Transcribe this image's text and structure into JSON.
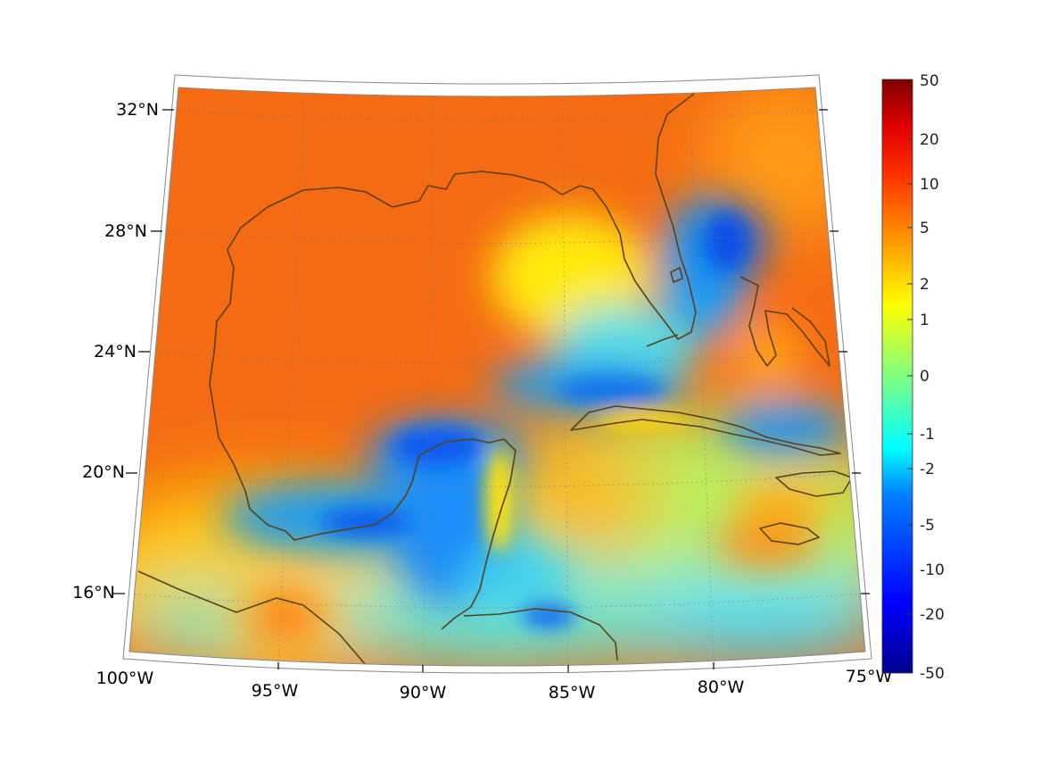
{
  "map": {
    "projection": "conic",
    "grid": true,
    "colormap": "jet",
    "region": "Gulf of Mexico and Caribbean",
    "lon_ticks": [
      "100°W",
      "95°W",
      "90°W",
      "85°W",
      "80°W",
      "75°W"
    ],
    "lat_ticks": [
      "32°N",
      "28°N",
      "24°N",
      "20°N",
      "16°N"
    ],
    "coastline_color": "#5a4018"
  },
  "colorbar": {
    "ticks": [
      "50",
      "20",
      "10",
      "5",
      "2",
      "1",
      "0",
      "-1",
      "-2",
      "-5",
      "-10",
      "-20",
      "-50"
    ]
  }
}
